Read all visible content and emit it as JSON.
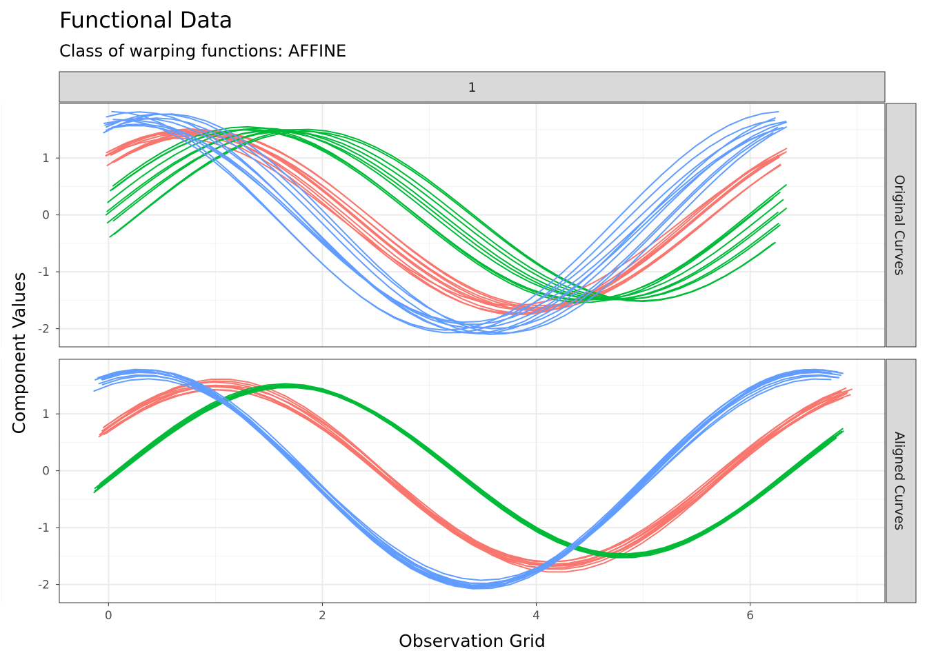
{
  "chart_data": {
    "type": "line",
    "title": "Functional Data",
    "subtitle": "Class of warping functions: AFFINE",
    "xlabel": "Observation Grid",
    "ylabel": "Component Values",
    "facet_column_label": "1",
    "xlim": [
      -0.46,
      7.26
    ],
    "x_ticks": [
      0,
      2,
      4,
      6
    ],
    "y_ticks": [
      -2,
      -1,
      0,
      1
    ],
    "grid": true,
    "colors": {
      "red": "#F8766D",
      "green": "#00BA38",
      "blue": "#619CFF"
    },
    "panels": [
      {
        "label": "Original Curves",
        "ylim": [
          -2.32,
          1.96
        ],
        "series_groups": [
          {
            "name": "red",
            "color": "#F8766D",
            "amplitude": 1.55,
            "freq": 1.0,
            "phase": 0.52,
            "offset": -0.1,
            "x_start": 0,
            "x_end": 6.28,
            "n_curves": 10,
            "amp_spread": 0.08,
            "phase_spread": [
              0.0,
              0.45
            ],
            "offset_spread": 0.05
          },
          {
            "name": "green",
            "color": "#00BA38",
            "amplitude": 1.5,
            "freq": 1.0,
            "phase": -0.33,
            "offset": 0.0,
            "x_start": 0,
            "x_end": 6.28,
            "n_curves": 10,
            "amp_spread": 0.03,
            "phase_spread": [
              -0.05,
              0.7
            ],
            "offset_spread": 0.03
          },
          {
            "name": "blue",
            "color": "#619CFF",
            "amplitude": 1.85,
            "freq": 1.0,
            "phase": 1.2,
            "offset": -0.15,
            "x_start": 0,
            "x_end": 6.28,
            "n_curves": 10,
            "amp_spread": 0.1,
            "phase_spread": [
              -0.25,
              0.35
            ],
            "offset_spread": 0.05
          }
        ]
      },
      {
        "label": "Aligned Curves",
        "ylim": [
          -2.32,
          1.96
        ],
        "series_groups": [
          {
            "name": "red",
            "color": "#F8766D",
            "amplitude": 1.6,
            "freq": 1.0,
            "phase": 0.55,
            "offset": -0.1,
            "x_start": -0.05,
            "x_end": 6.9,
            "n_curves": 10,
            "amp_spread": 0.12,
            "phase_spread": [
              -0.05,
              0.05
            ],
            "offset_spread": 0.05
          },
          {
            "name": "green",
            "color": "#00BA38",
            "amplitude": 1.5,
            "freq": 1.0,
            "phase": -0.1,
            "offset": 0.0,
            "x_start": -0.1,
            "x_end": 6.8,
            "n_curves": 10,
            "amp_spread": 0.02,
            "phase_spread": [
              -0.02,
              0.02
            ],
            "offset_spread": 0.02
          },
          {
            "name": "blue",
            "color": "#619CFF",
            "amplitude": 1.85,
            "freq": 1.0,
            "phase": 1.25,
            "offset": -0.15,
            "x_start": -0.1,
            "x_end": 6.8,
            "n_curves": 10,
            "amp_spread": 0.08,
            "phase_spread": [
              -0.04,
              0.04
            ],
            "offset_spread": 0.03
          }
        ]
      }
    ]
  }
}
